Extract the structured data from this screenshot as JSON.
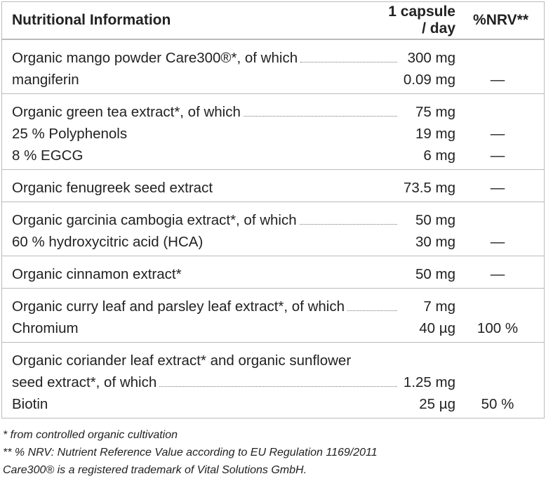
{
  "header": [
    "Nutritional Information",
    "1 capsule / day",
    "%NRV**"
  ],
  "groups": [
    {
      "rows": [
        {
          "name": "Organic mango powder Care300®*, of which",
          "leader": true,
          "amount": "300 mg"
        },
        {
          "name": "mangiferin",
          "amount": "0.09 mg",
          "nrv": "—"
        }
      ]
    },
    {
      "rows": [
        {
          "name": "Organic green tea extract*, of which",
          "leader": true,
          "amount": "75 mg"
        },
        {
          "name": "25 % Polyphenols",
          "amount": "19 mg",
          "nrv": "—"
        },
        {
          "name": "8 % EGCG",
          "amount": "6 mg",
          "nrv": "—"
        }
      ]
    },
    {
      "rows": [
        {
          "name": "Organic fenugreek seed extract",
          "amount": "73.5 mg",
          "nrv": "—"
        }
      ]
    },
    {
      "rows": [
        {
          "name": "Organic garcinia cambogia extract*, of which",
          "leader": true,
          "amount": "50 mg"
        },
        {
          "name": "60 % hydroxycitric acid (HCA)",
          "amount": "30 mg",
          "nrv": "—"
        }
      ]
    },
    {
      "rows": [
        {
          "name": "Organic cinnamon extract*",
          "amount": "50 mg",
          "nrv": "—"
        }
      ]
    },
    {
      "rows": [
        {
          "name": "Organic curry leaf and parsley leaf extract*, of which",
          "leader": true,
          "amount": "7 mg"
        },
        {
          "name": "Chromium",
          "amount": "40 µg",
          "nrv": "100 %"
        }
      ]
    },
    {
      "rows": [
        {
          "name": "Organic coriander leaf extract* and organic sunflower"
        },
        {
          "name": "seed extract*, of which",
          "leader": true,
          "amount": "1.25 mg"
        },
        {
          "name": "Biotin",
          "amount": "25 µg",
          "nrv": "50 %"
        }
      ]
    }
  ],
  "footnotes": [
    "* from controlled organic cultivation",
    "** % NRV: Nutrient Reference Value according to EU Regulation 1169/2011",
    "Care300® is a registered trademark of Vital Solutions GmbH."
  ]
}
